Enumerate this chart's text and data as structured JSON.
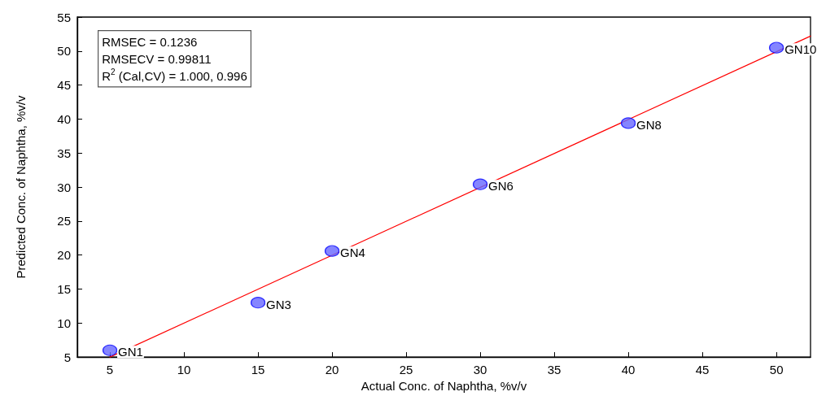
{
  "chart_data": {
    "type": "scatter",
    "xlabel": "Actual Conc. of Naphtha, %v/v",
    "ylabel": "Predicted Conc. of Naphtha, %v/v",
    "x": [
      5,
      15,
      20,
      30,
      40,
      50
    ],
    "series": [
      {
        "color": "#6666ff",
        "marker": "circle",
        "values": [
          6.0,
          13.0,
          20.6,
          30.4,
          39.4,
          50.5
        ]
      },
      {
        "type": "line",
        "color": "#ff0000",
        "marker": "none",
        "line_style": "solid",
        "x": [
          5,
          52.3
        ],
        "values": [
          5,
          52.2
        ]
      }
    ],
    "annotations": [
      "RMSEC = 0.1236",
      "RMSECV = 0.99811",
      "R$^{2}$ (Cal,CV) = 1.000, 0.996",
      {
        "text": "GN1",
        "x": 5,
        "y": 6.0
      },
      {
        "text": "GN3",
        "x": 15,
        "y": 13.0
      },
      {
        "text": "GN4",
        "x": 20,
        "y": 20.6
      },
      {
        "text": "GN6",
        "x": 30,
        "y": 30.4
      },
      {
        "text": "GN8",
        "x": 40,
        "y": 39.4
      },
      {
        "text": "GN10",
        "x": 50,
        "y": 50.5
      }
    ],
    "xlim": [
      2.8,
      52.3
    ],
    "xticks": [
      5,
      10,
      15,
      20,
      25,
      30,
      35,
      40,
      45,
      50
    ],
    "ylim": [
      5,
      55
    ],
    "yticks": [
      5,
      10,
      15,
      20,
      25,
      30,
      35,
      40,
      45,
      50,
      55
    ],
    "grid": false
  }
}
